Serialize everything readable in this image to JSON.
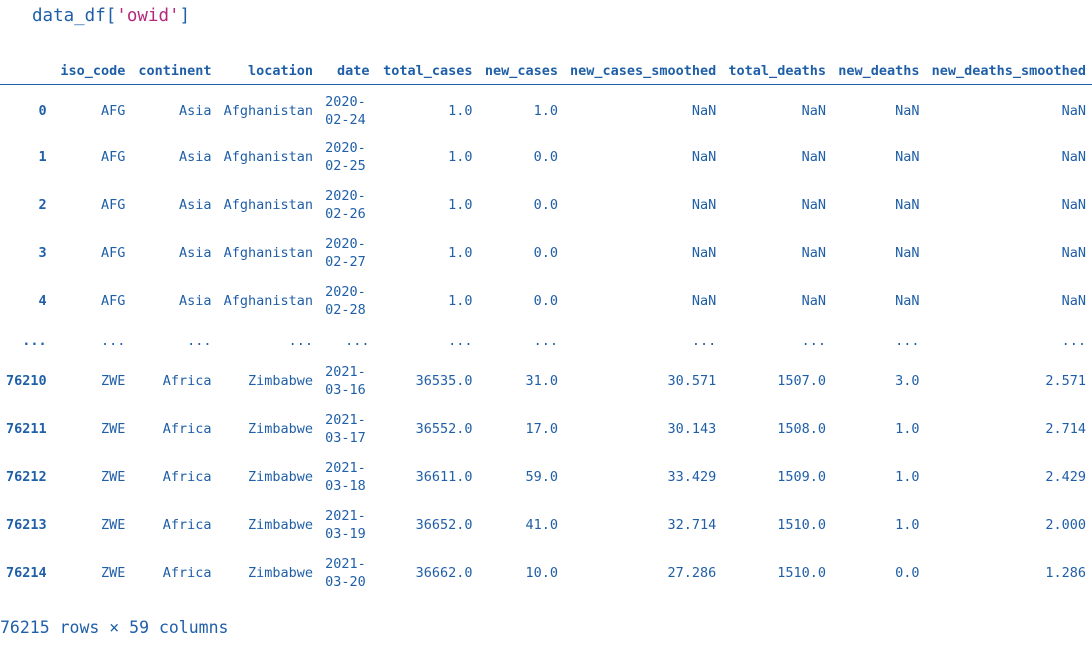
{
  "code": {
    "prefix": "data_df[",
    "string": "'owid'",
    "suffix": "]"
  },
  "table": {
    "columns": [
      "",
      "iso_code",
      "continent",
      "location",
      "date",
      "total_cases",
      "new_cases",
      "new_cases_smoothed",
      "total_deaths",
      "new_deaths",
      "new_deaths_smoothed"
    ],
    "rows": [
      {
        "index": "0",
        "iso_code": "AFG",
        "continent": "Asia",
        "location": "Afghanistan",
        "date": "2020-02-24",
        "total_cases": "1.0",
        "new_cases": "1.0",
        "new_cases_smoothed": "NaN",
        "total_deaths": "NaN",
        "new_deaths": "NaN",
        "new_deaths_smoothed": "NaN"
      },
      {
        "index": "1",
        "iso_code": "AFG",
        "continent": "Asia",
        "location": "Afghanistan",
        "date": "2020-02-25",
        "total_cases": "1.0",
        "new_cases": "0.0",
        "new_cases_smoothed": "NaN",
        "total_deaths": "NaN",
        "new_deaths": "NaN",
        "new_deaths_smoothed": "NaN"
      },
      {
        "index": "2",
        "iso_code": "AFG",
        "continent": "Asia",
        "location": "Afghanistan",
        "date": "2020-02-26",
        "total_cases": "1.0",
        "new_cases": "0.0",
        "new_cases_smoothed": "NaN",
        "total_deaths": "NaN",
        "new_deaths": "NaN",
        "new_deaths_smoothed": "NaN"
      },
      {
        "index": "3",
        "iso_code": "AFG",
        "continent": "Asia",
        "location": "Afghanistan",
        "date": "2020-02-27",
        "total_cases": "1.0",
        "new_cases": "0.0",
        "new_cases_smoothed": "NaN",
        "total_deaths": "NaN",
        "new_deaths": "NaN",
        "new_deaths_smoothed": "NaN"
      },
      {
        "index": "4",
        "iso_code": "AFG",
        "continent": "Asia",
        "location": "Afghanistan",
        "date": "2020-02-28",
        "total_cases": "1.0",
        "new_cases": "0.0",
        "new_cases_smoothed": "NaN",
        "total_deaths": "NaN",
        "new_deaths": "NaN",
        "new_deaths_smoothed": "NaN"
      },
      {
        "index": "...",
        "iso_code": "...",
        "continent": "...",
        "location": "...",
        "date": "...",
        "total_cases": "...",
        "new_cases": "...",
        "new_cases_smoothed": "...",
        "total_deaths": "...",
        "new_deaths": "...",
        "new_deaths_smoothed": "..."
      },
      {
        "index": "76210",
        "iso_code": "ZWE",
        "continent": "Africa",
        "location": "Zimbabwe",
        "date": "2021-03-16",
        "total_cases": "36535.0",
        "new_cases": "31.0",
        "new_cases_smoothed": "30.571",
        "total_deaths": "1507.0",
        "new_deaths": "3.0",
        "new_deaths_smoothed": "2.571"
      },
      {
        "index": "76211",
        "iso_code": "ZWE",
        "continent": "Africa",
        "location": "Zimbabwe",
        "date": "2021-03-17",
        "total_cases": "36552.0",
        "new_cases": "17.0",
        "new_cases_smoothed": "30.143",
        "total_deaths": "1508.0",
        "new_deaths": "1.0",
        "new_deaths_smoothed": "2.714"
      },
      {
        "index": "76212",
        "iso_code": "ZWE",
        "continent": "Africa",
        "location": "Zimbabwe",
        "date": "2021-03-18",
        "total_cases": "36611.0",
        "new_cases": "59.0",
        "new_cases_smoothed": "33.429",
        "total_deaths": "1509.0",
        "new_deaths": "1.0",
        "new_deaths_smoothed": "2.429"
      },
      {
        "index": "76213",
        "iso_code": "ZWE",
        "continent": "Africa",
        "location": "Zimbabwe",
        "date": "2021-03-19",
        "total_cases": "36652.0",
        "new_cases": "41.0",
        "new_cases_smoothed": "32.714",
        "total_deaths": "1510.0",
        "new_deaths": "1.0",
        "new_deaths_smoothed": "2.000"
      },
      {
        "index": "76214",
        "iso_code": "ZWE",
        "continent": "Africa",
        "location": "Zimbabwe",
        "date": "2021-03-20",
        "total_cases": "36662.0",
        "new_cases": "10.0",
        "new_cases_smoothed": "27.286",
        "total_deaths": "1510.0",
        "new_deaths": "0.0",
        "new_deaths_smoothed": "1.286"
      }
    ]
  },
  "footer": "76215 rows × 59 columns",
  "colors": {
    "text": "#1f5fa8",
    "string_literal": "#b5287e"
  }
}
